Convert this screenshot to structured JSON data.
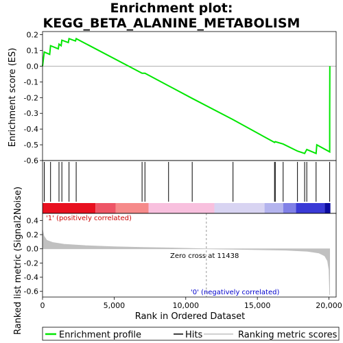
{
  "chart_data": {
    "type": "line",
    "title_line1": "Enrichment plot:",
    "title_line2": "KEGG_BETA_ALANINE_METABOLISM",
    "xlabel": "Rank in Ordered Dataset",
    "ylabel_top": "Enrichment score (ES)",
    "ylabel_bottom": "Ranked list metric (Signal2Noise)",
    "xlim": [
      0,
      20500
    ],
    "ylim_es": [
      -0.6,
      0.22
    ],
    "ylim_metric": [
      -0.68,
      0.5
    ],
    "x_ticks": [
      0,
      5000,
      10000,
      15000,
      20000
    ],
    "x_tick_labels": [
      "0",
      "5,000",
      "10,000",
      "15,000",
      "20,000"
    ],
    "es_ticks": [
      0.2,
      0.1,
      0.0,
      -0.1,
      -0.2,
      -0.3,
      -0.4,
      -0.5,
      -0.6
    ],
    "es_tick_labels": [
      "0.2",
      "0.1",
      "0.0",
      "-0.1",
      "-0.2",
      "-0.3",
      "-0.4",
      "-0.5",
      "-0.6"
    ],
    "metric_ticks": [
      0.4,
      0.2,
      0.0,
      -0.2,
      -0.4,
      -0.6
    ],
    "metric_tick_labels": [
      "0.4",
      "0.2",
      "0.0",
      "-0.2",
      "-0.4",
      "-0.6"
    ],
    "hits": [
      120,
      560,
      1150,
      1350,
      1850,
      2350,
      6950,
      7150,
      8800,
      10450,
      13300,
      16200,
      16250,
      16800,
      17800,
      18300,
      18450,
      19100,
      20050
    ],
    "es_curve": [
      [
        0,
        0.0
      ],
      [
        120,
        0.09
      ],
      [
        500,
        0.075
      ],
      [
        560,
        0.13
      ],
      [
        1100,
        0.11
      ],
      [
        1150,
        0.14
      ],
      [
        1300,
        0.13
      ],
      [
        1350,
        0.165
      ],
      [
        1800,
        0.15
      ],
      [
        1850,
        0.175
      ],
      [
        2300,
        0.16
      ],
      [
        2350,
        0.175
      ],
      [
        6950,
        -0.045
      ],
      [
        7150,
        -0.045
      ],
      [
        8800,
        -0.125
      ],
      [
        10450,
        -0.205
      ],
      [
        13300,
        -0.34
      ],
      [
        16200,
        -0.485
      ],
      [
        16250,
        -0.48
      ],
      [
        16800,
        -0.495
      ],
      [
        17800,
        -0.54
      ],
      [
        18300,
        -0.555
      ],
      [
        18450,
        -0.53
      ],
      [
        19100,
        -0.555
      ],
      [
        19150,
        -0.5
      ],
      [
        20050,
        -0.545
      ],
      [
        20050,
        -0.3
      ],
      [
        20060,
        0.0
      ]
    ],
    "metric_curve": [
      [
        0,
        0.27
      ],
      [
        100,
        0.18
      ],
      [
        300,
        0.12
      ],
      [
        700,
        0.09
      ],
      [
        1500,
        0.065
      ],
      [
        3000,
        0.045
      ],
      [
        5000,
        0.03
      ],
      [
        7000,
        0.02
      ],
      [
        9000,
        0.012
      ],
      [
        11438,
        0.0
      ],
      [
        13000,
        -0.005
      ],
      [
        15000,
        -0.012
      ],
      [
        17000,
        -0.02
      ],
      [
        18500,
        -0.035
      ],
      [
        19300,
        -0.06
      ],
      [
        19700,
        -0.1
      ],
      [
        19900,
        -0.17
      ],
      [
        20000,
        -0.3
      ],
      [
        20050,
        -0.65
      ]
    ],
    "zero_cross_rank": 11438,
    "zero_cross_text": "Zero cross at 11438",
    "pos_label": "'1' (positively correlated)",
    "neg_label": "'0' (negatively correlated)",
    "legend": [
      "Enrichment profile",
      "Hits",
      "Ranking metric scores"
    ],
    "colors": {
      "es_line": "#00e600",
      "hits": "#000000",
      "metric_fill": "#c0c0c0",
      "pos_label": "#cc0000",
      "neg_label": "#0000cc",
      "zero_line": "#999999"
    },
    "color_bar": [
      [
        "#e8101f",
        0,
        3700
      ],
      [
        "#ee5566",
        3700,
        5100
      ],
      [
        "#f68a8a",
        5100,
        7400
      ],
      [
        "#f8c0de",
        7400,
        12000
      ],
      [
        "#d8d4f2",
        12000,
        15500
      ],
      [
        "#b4b4ee",
        15500,
        16800
      ],
      [
        "#8080e6",
        16800,
        17700
      ],
      [
        "#3a3ad6",
        17700,
        19700
      ],
      [
        "#0c0ca0",
        19700,
        20100
      ]
    ]
  }
}
